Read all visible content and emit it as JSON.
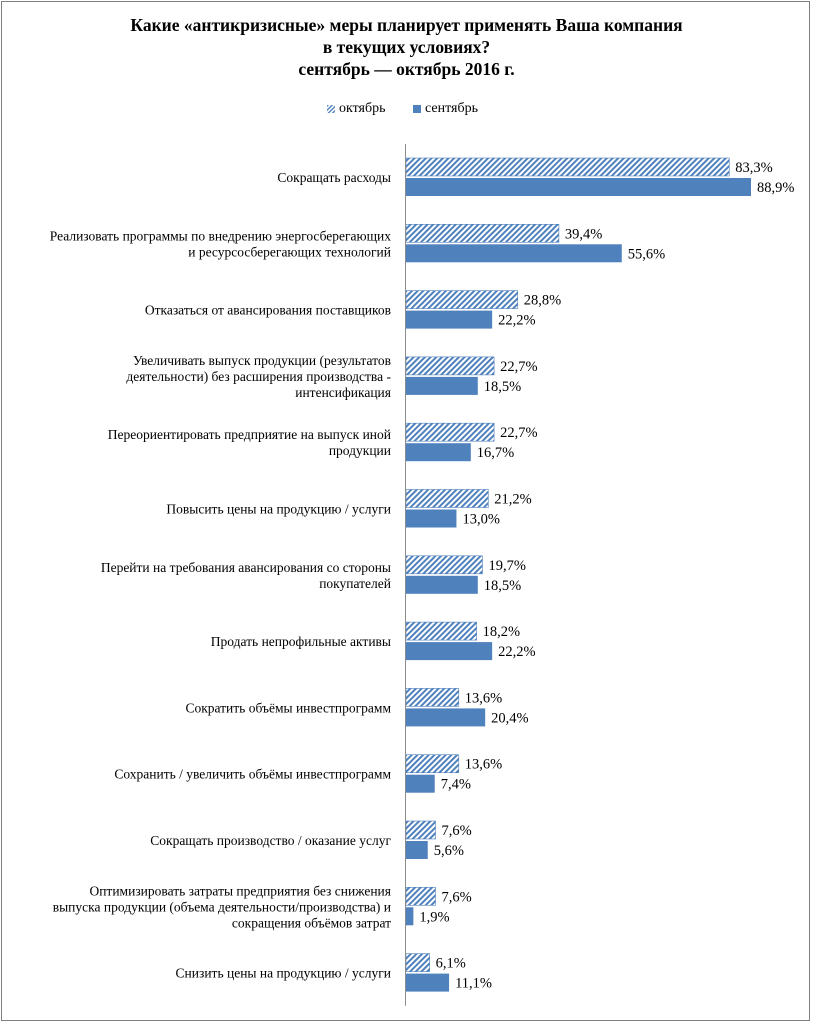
{
  "chart_data": {
    "type": "bar",
    "orientation": "horizontal",
    "title_lines": [
      "Какие «антикризисные»  меры планирует  применять  Ваша компания",
      "в текущих условиях?",
      "сентябрь — октябрь 2016 г."
    ],
    "legend_position": "top",
    "xlim": [
      0,
      100
    ],
    "grid": false,
    "series": [
      {
        "name": "октябрь",
        "pattern": "hatched",
        "color": "#4f81bd",
        "values": [
          83.3,
          39.4,
          28.8,
          22.7,
          22.7,
          21.2,
          19.7,
          18.2,
          13.6,
          13.6,
          7.6,
          7.6,
          6.1
        ],
        "labels": [
          "83,3%",
          "39,4%",
          "28,8%",
          "22,7%",
          "22,7%",
          "21,2%",
          "19,7%",
          "18,2%",
          "13,6%",
          "13,6%",
          "7,6%",
          "7,6%",
          "6,1%"
        ]
      },
      {
        "name": "сентябрь",
        "pattern": "solid",
        "color": "#4f81bd",
        "values": [
          88.9,
          55.6,
          22.2,
          18.5,
          16.7,
          13.0,
          18.5,
          22.2,
          20.4,
          7.4,
          5.6,
          1.9,
          11.1
        ],
        "labels": [
          "88,9%",
          "55,6%",
          "22,2%",
          "18,5%",
          "16,7%",
          "13,0%",
          "18,5%",
          "22,2%",
          "20,4%",
          "7,4%",
          "5,6%",
          "1,9%",
          "11,1%"
        ]
      }
    ],
    "categories": [
      [
        "Сокращать расходы"
      ],
      [
        "Реализовать программы по внедрению энергосберегающих",
        "и ресурсосберегающих технологий"
      ],
      [
        "Отказаться от авансирования поставщиков"
      ],
      [
        "Увеличивать  выпуск продукции (результатов",
        "деятельности) без расширения производства -",
        "интенсификация"
      ],
      [
        "Переориентировать предприятие на выпуск иной",
        "продукции"
      ],
      [
        "Повысить цены на продукцию / услуги"
      ],
      [
        "Перейти на требования авансирования со стороны",
        "покупателей"
      ],
      [
        "Продать непрофильные активы"
      ],
      [
        "Сократить объёмы инвестпрограмм"
      ],
      [
        "Сохранить / увеличить объёмы инвестпрограмм"
      ],
      [
        "Сокращать производство / оказание услуг"
      ],
      [
        "Оптимизировать затраты предприятия без снижения",
        "выпуска продукции (объема деятельности/производства) и",
        "сокращения объёмов затрат"
      ],
      [
        "Снизить цены на продукцию / услуги"
      ]
    ]
  }
}
